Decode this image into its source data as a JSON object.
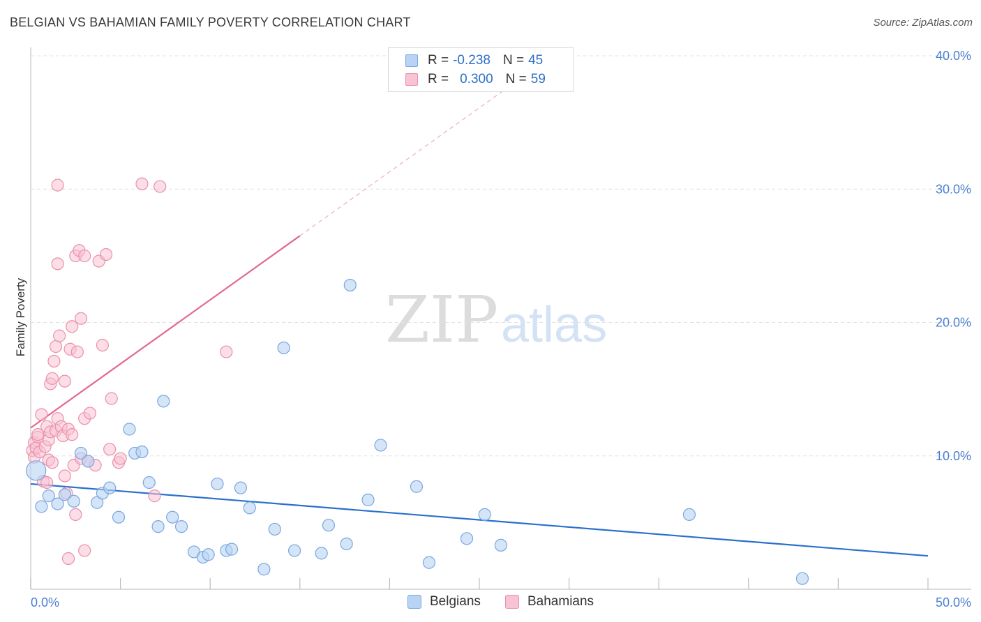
{
  "header": {
    "title": "BELGIAN VS BAHAMIAN FAMILY POVERTY CORRELATION CHART",
    "source": "Source: ZipAtlas.com"
  },
  "legend": {
    "rows": [
      {
        "r_label": "R =",
        "r_value": "-0.238",
        "n_label": "N =",
        "n_value": "45"
      },
      {
        "r_label": "R =",
        "r_value": "0.300",
        "n_label": "N =",
        "n_value": "59"
      }
    ]
  },
  "watermark": {
    "zip": "ZIP",
    "atlas": "atlas"
  },
  "colors": {
    "belgians_fill": "#b8d3f4",
    "belgians_stroke": "#7aa6e0",
    "belgians_line": "#2a6fcf",
    "bahamians_fill": "#f8c3d2",
    "bahamians_stroke": "#eb8fab",
    "bahamians_line": "#e2688f",
    "tick_color": "#4a7fd0"
  },
  "chart_data": {
    "type": "scatter",
    "title": "BELGIAN VS BAHAMIAN FAMILY POVERTY CORRELATION CHART",
    "xlabel": "",
    "ylabel": "Family Poverty",
    "xlim": [
      0,
      50
    ],
    "ylim": [
      0,
      40
    ],
    "x_tick_labels": [
      "0.0%",
      "50.0%"
    ],
    "y_ticks": [
      10,
      20,
      30,
      40
    ],
    "y_tick_labels": [
      "10.0%",
      "20.0%",
      "30.0%",
      "40.0%"
    ],
    "grid": "horizontal dashed",
    "legend_placement": "top-center",
    "series": [
      {
        "name": "Belgians",
        "r": -0.238,
        "n": 45,
        "trend": {
          "x": [
            0,
            50
          ],
          "y": [
            7.9,
            2.5
          ]
        },
        "points": [
          [
            0.3,
            8.9
          ],
          [
            0.6,
            6.2
          ],
          [
            1.0,
            7.0
          ],
          [
            1.5,
            6.4
          ],
          [
            1.9,
            7.1
          ],
          [
            2.4,
            6.6
          ],
          [
            2.8,
            10.2
          ],
          [
            3.2,
            9.6
          ],
          [
            3.7,
            6.5
          ],
          [
            4.0,
            7.2
          ],
          [
            4.4,
            7.6
          ],
          [
            4.9,
            5.4
          ],
          [
            5.5,
            12.0
          ],
          [
            5.8,
            10.2
          ],
          [
            6.2,
            10.3
          ],
          [
            6.6,
            8.0
          ],
          [
            7.1,
            4.7
          ],
          [
            7.4,
            14.1
          ],
          [
            7.9,
            5.4
          ],
          [
            8.4,
            4.7
          ],
          [
            9.1,
            2.8
          ],
          [
            9.6,
            2.4
          ],
          [
            9.9,
            2.6
          ],
          [
            10.4,
            7.9
          ],
          [
            10.9,
            2.9
          ],
          [
            11.2,
            3.0
          ],
          [
            11.7,
            7.6
          ],
          [
            12.2,
            6.1
          ],
          [
            13.0,
            1.5
          ],
          [
            13.6,
            4.5
          ],
          [
            14.1,
            18.1
          ],
          [
            14.7,
            2.9
          ],
          [
            16.2,
            2.7
          ],
          [
            16.6,
            4.8
          ],
          [
            17.6,
            3.4
          ],
          [
            17.8,
            22.8
          ],
          [
            18.8,
            6.7
          ],
          [
            19.5,
            10.8
          ],
          [
            21.5,
            7.7
          ],
          [
            22.2,
            2.0
          ],
          [
            24.3,
            3.8
          ],
          [
            25.3,
            5.6
          ],
          [
            26.2,
            3.3
          ],
          [
            36.7,
            5.6
          ],
          [
            43.0,
            0.8
          ]
        ]
      },
      {
        "name": "Bahamians",
        "r": 0.3,
        "n": 59,
        "trend": {
          "x": [
            0,
            15
          ],
          "y": [
            12.1,
            26.5
          ]
        },
        "trend_extension": {
          "x": [
            15,
            27.5
          ],
          "y": [
            26.5,
            38.5
          ]
        },
        "points": [
          [
            0.1,
            10.4
          ],
          [
            0.2,
            11.0
          ],
          [
            0.2,
            9.9
          ],
          [
            0.3,
            10.6
          ],
          [
            0.4,
            11.4
          ],
          [
            0.5,
            10.3
          ],
          [
            0.6,
            13.1
          ],
          [
            0.7,
            8.1
          ],
          [
            0.8,
            10.7
          ],
          [
            0.9,
            12.2
          ],
          [
            1.0,
            11.2
          ],
          [
            1.0,
            9.7
          ],
          [
            1.1,
            11.8
          ],
          [
            1.1,
            15.4
          ],
          [
            1.2,
            15.8
          ],
          [
            1.2,
            9.5
          ],
          [
            1.3,
            17.1
          ],
          [
            1.4,
            18.2
          ],
          [
            1.4,
            11.9
          ],
          [
            1.5,
            12.8
          ],
          [
            1.5,
            30.3
          ],
          [
            1.5,
            24.4
          ],
          [
            1.6,
            19.0
          ],
          [
            1.7,
            12.2
          ],
          [
            1.8,
            11.5
          ],
          [
            1.9,
            15.6
          ],
          [
            1.9,
            8.5
          ],
          [
            2.0,
            7.2
          ],
          [
            2.1,
            12.0
          ],
          [
            2.1,
            2.3
          ],
          [
            2.2,
            18.0
          ],
          [
            2.3,
            19.7
          ],
          [
            2.3,
            11.6
          ],
          [
            2.4,
            9.3
          ],
          [
            2.5,
            25.0
          ],
          [
            2.5,
            5.6
          ],
          [
            2.6,
            17.8
          ],
          [
            2.7,
            25.4
          ],
          [
            2.8,
            9.8
          ],
          [
            2.8,
            20.3
          ],
          [
            3.0,
            2.9
          ],
          [
            3.0,
            12.8
          ],
          [
            3.0,
            25.0
          ],
          [
            3.2,
            9.6
          ],
          [
            3.3,
            13.2
          ],
          [
            3.6,
            9.3
          ],
          [
            3.8,
            24.6
          ],
          [
            4.0,
            18.3
          ],
          [
            4.2,
            25.1
          ],
          [
            4.4,
            10.5
          ],
          [
            4.5,
            14.3
          ],
          [
            4.9,
            9.5
          ],
          [
            5.0,
            9.8
          ],
          [
            6.2,
            30.4
          ],
          [
            6.9,
            7.0
          ],
          [
            7.2,
            30.2
          ],
          [
            10.9,
            17.8
          ],
          [
            0.4,
            11.6
          ],
          [
            0.9,
            8.0
          ]
        ]
      }
    ]
  },
  "bottom_legend": {
    "items": [
      "Belgians",
      "Bahamians"
    ]
  }
}
